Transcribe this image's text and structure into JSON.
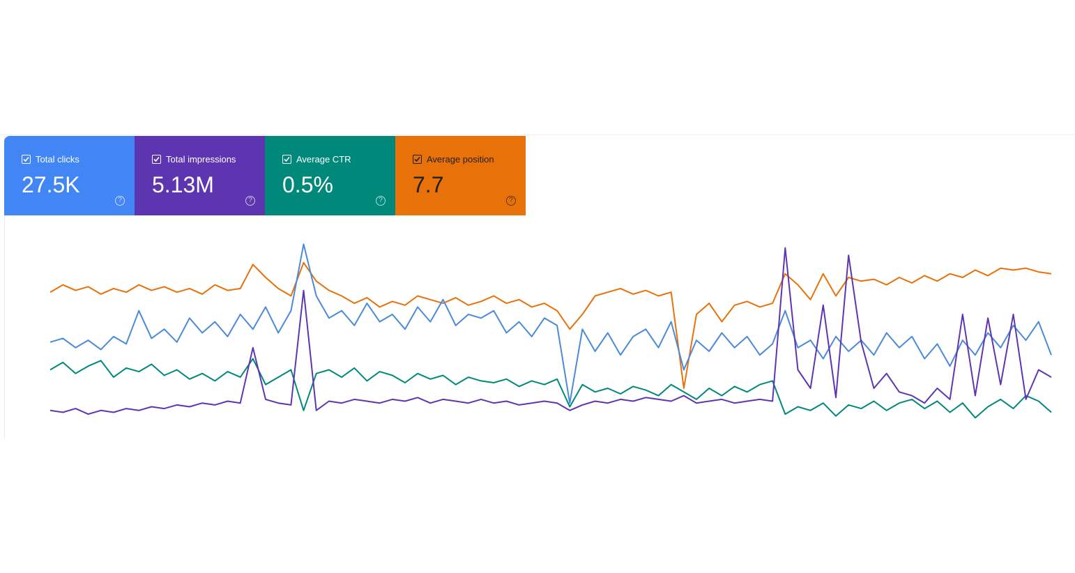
{
  "cards": [
    {
      "label": "Total clicks",
      "value": "27.5K",
      "color": "#4285f4",
      "text_color": "#ffffff"
    },
    {
      "label": "Total impressions",
      "value": "5.13M",
      "color": "#5e35b1",
      "text_color": "#ffffff"
    },
    {
      "label": "Average CTR",
      "value": "0.5%",
      "color": "#00897b",
      "text_color": "#ffffff"
    },
    {
      "label": "Average position",
      "value": "7.7",
      "color": "#e8710a",
      "text_color": "#202124"
    }
  ],
  "chart_data": {
    "type": "line",
    "ylim": [
      0,
      100
    ],
    "series": [
      {
        "name": "Average position",
        "color": "#e8710a",
        "values": [
          72,
          76,
          73,
          75,
          71,
          74,
          72,
          76,
          73,
          75,
          72,
          74,
          71,
          76,
          73,
          74,
          87,
          80,
          74,
          70,
          88,
          78,
          73,
          70,
          66,
          69,
          64,
          67,
          65,
          70,
          68,
          66,
          69,
          65,
          67,
          70,
          66,
          68,
          64,
          66,
          62,
          52,
          60,
          70,
          72,
          74,
          71,
          73,
          70,
          72,
          20,
          60,
          66,
          56,
          65,
          67,
          64,
          66,
          82,
          76,
          68,
          82,
          70,
          80,
          78,
          79,
          76,
          80,
          77,
          81,
          78,
          82,
          80,
          84,
          81,
          85,
          84,
          85,
          83,
          82
        ]
      },
      {
        "name": "Total clicks",
        "color": "#4a8ad8",
        "values": [
          45,
          47,
          42,
          46,
          41,
          48,
          44,
          62,
          47,
          52,
          45,
          58,
          50,
          56,
          48,
          60,
          52,
          64,
          50,
          62,
          98,
          70,
          58,
          62,
          54,
          66,
          56,
          60,
          52,
          64,
          56,
          68,
          54,
          60,
          58,
          62,
          50,
          56,
          48,
          58,
          54,
          12,
          52,
          40,
          50,
          38,
          48,
          52,
          42,
          56,
          30,
          46,
          40,
          50,
          42,
          48,
          38,
          44,
          62,
          42,
          46,
          36,
          48,
          40,
          46,
          38,
          50,
          42,
          48,
          36,
          44,
          32,
          46,
          38,
          50,
          42,
          54,
          46,
          56,
          38
        ]
      },
      {
        "name": "Average CTR",
        "color": "#00897b",
        "values": [
          30,
          34,
          28,
          32,
          35,
          26,
          31,
          29,
          33,
          27,
          30,
          25,
          28,
          24,
          29,
          26,
          36,
          22,
          26,
          30,
          8,
          28,
          30,
          26,
          31,
          24,
          29,
          27,
          23,
          28,
          25,
          27,
          22,
          26,
          24,
          23,
          25,
          21,
          24,
          22,
          25,
          10,
          22,
          18,
          20,
          17,
          21,
          19,
          16,
          22,
          18,
          14,
          20,
          16,
          21,
          18,
          22,
          24,
          6,
          10,
          8,
          12,
          5,
          11,
          9,
          13,
          8,
          12,
          14,
          9,
          13,
          7,
          12,
          4,
          10,
          14,
          9,
          16,
          13,
          7
        ]
      },
      {
        "name": "Total impressions",
        "color": "#5e35b1",
        "values": [
          8,
          7,
          9,
          6,
          8,
          7,
          9,
          8,
          10,
          9,
          11,
          10,
          12,
          11,
          13,
          12,
          42,
          14,
          12,
          11,
          73,
          8,
          13,
          12,
          14,
          13,
          12,
          14,
          13,
          15,
          12,
          14,
          13,
          12,
          14,
          12,
          13,
          11,
          12,
          13,
          12,
          8,
          11,
          13,
          12,
          14,
          13,
          15,
          14,
          13,
          16,
          12,
          13,
          14,
          12,
          13,
          14,
          13,
          96,
          30,
          20,
          65,
          15,
          92,
          45,
          20,
          28,
          18,
          16,
          12,
          20,
          14,
          60,
          16,
          58,
          22,
          60,
          14,
          30,
          26
        ]
      }
    ]
  }
}
